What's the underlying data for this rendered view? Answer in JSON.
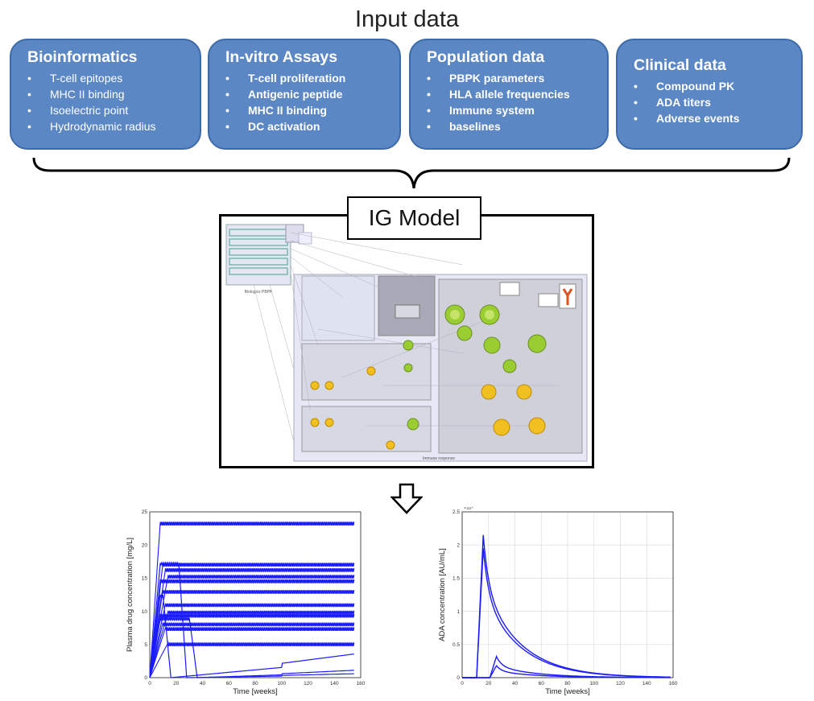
{
  "title": "Input data",
  "boxes": [
    {
      "title": "Bioinformatics",
      "items": [
        "T-cell epitopes",
        "MHC II binding",
        "Isoelectric point",
        "Hydrodynamic radius"
      ]
    },
    {
      "title": "In-vitro Assays",
      "items": [
        "T-cell proliferation",
        "Antigenic peptide",
        "MHC II binding",
        "DC activation"
      ]
    },
    {
      "title": "Population data",
      "items": [
        "PBPK parameters",
        "HLA allele frequencies",
        "Immune system",
        "baselines"
      ]
    },
    {
      "title": "Clinical data",
      "items": [
        "Compound PK",
        "ADA titers",
        "Adverse events"
      ]
    }
  ],
  "model": {
    "label": "IG Model",
    "pbpk_caption": "Biologics PBPK",
    "immune_caption": "Immune response"
  },
  "colors": {
    "box_fill": "#5b87c5",
    "box_border": "#3d6aa8",
    "curve": "#1a1aff"
  },
  "chart_data": [
    {
      "type": "line",
      "title": "",
      "xlabel": "Time [weeks]",
      "ylabel": "Plasma drug concentration [mg/L]",
      "xlim": [
        0,
        160
      ],
      "ylim": [
        0,
        25
      ],
      "xticks": [
        0,
        20,
        40,
        60,
        80,
        100,
        120,
        140,
        160
      ],
      "yticks": [
        0,
        5,
        10,
        15,
        20,
        25
      ],
      "grid": false,
      "series_plateaus": [
        23.5,
        17.3,
        16.5,
        15.5,
        14.8,
        13.2,
        11.2,
        10.1,
        9.6,
        8.3,
        7.6,
        5.3
      ],
      "eliminated_series_peaks": [
        17.3,
        12.5,
        9.0
      ]
    },
    {
      "type": "line",
      "title": "",
      "xlabel": "Time [weeks]",
      "ylabel": "ADA concentration [AU/mL]",
      "y_scale_label": "×10⁴",
      "xlim": [
        0,
        160
      ],
      "ylim": [
        0,
        2.5
      ],
      "xticks": [
        0,
        20,
        40,
        60,
        80,
        100,
        120,
        140,
        160
      ],
      "yticks": [
        0,
        0.5,
        1,
        1.5,
        2,
        2.5
      ],
      "grid": true,
      "series_peaks": [
        {
          "peak_week": 16,
          "peak": 2.15
        },
        {
          "peak_week": 16,
          "peak": 1.95
        },
        {
          "peak_week": 26,
          "peak": 0.32
        },
        {
          "peak_week": 26,
          "peak": 0.18
        }
      ]
    }
  ]
}
